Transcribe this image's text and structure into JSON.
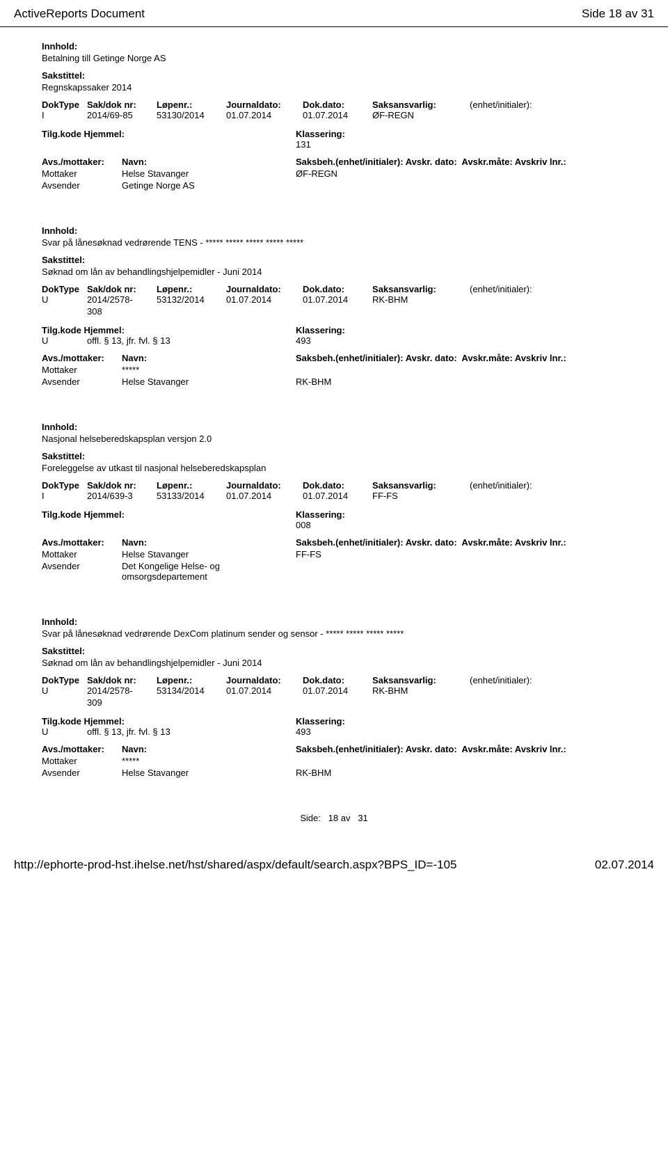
{
  "header": {
    "doc_title": "ActiveReports Document",
    "page_info": "Side 18 av 31"
  },
  "labels": {
    "innhold": "Innhold:",
    "sakstittel": "Sakstittel:",
    "doktype": "DokType",
    "sakdoknr": "Sak/dok nr:",
    "lopenr": "Løpenr.:",
    "journaldato": "Journaldato:",
    "dokdato": "Dok.dato:",
    "saksansvarlig": "Saksansvarlig:",
    "enhet": "(enhet/initialer):",
    "tilgkode": "Tilg.kode",
    "hjemmel": "Hjemmel:",
    "klassering": "Klassering:",
    "avsmottaker": "Avs./mottaker:",
    "navn": "Navn:",
    "saksbeh": "Saksbeh.(enhet/initialer):",
    "avskrdato": "Avskr. dato:",
    "avskrmate": "Avskr.måte:",
    "avskrivlnr": "Avskriv lnr.:",
    "mottaker": "Mottaker",
    "avsender": "Avsender"
  },
  "records": [
    {
      "innhold": "Betalning till Getinge Norge AS",
      "sakstittel": "Regnskapssaker 2014",
      "doktype": "I",
      "sakdoknr": "2014/69-85",
      "sakdoknr2": "",
      "lopenr": "53130/2014",
      "journaldato": "01.07.2014",
      "dokdato": "01.07.2014",
      "saksansvarlig": "ØF-REGN",
      "tilg_u": "",
      "tilg_hjemmel": "",
      "klassering": "131",
      "parties": [
        {
          "role": "Mottaker",
          "navn": "Helse Stavanger",
          "saksbeh": "ØF-REGN"
        },
        {
          "role": "Avsender",
          "navn": "Getinge Norge AS",
          "saksbeh": ""
        }
      ]
    },
    {
      "innhold": "Svar på lånesøknad vedrørende TENS - ***** ***** ***** ***** *****",
      "sakstittel": "Søknad om lån av behandlingshjelpemidler - Juni 2014",
      "doktype": "U",
      "sakdoknr": "2014/2578-",
      "sakdoknr2": "308",
      "lopenr": "53132/2014",
      "journaldato": "01.07.2014",
      "dokdato": "01.07.2014",
      "saksansvarlig": "RK-BHM",
      "tilg_u": "U",
      "tilg_hjemmel": "offl. § 13, jfr. fvl. § 13",
      "klassering": "493",
      "parties": [
        {
          "role": "Mottaker",
          "navn": "*****",
          "saksbeh": ""
        },
        {
          "role": "Avsender",
          "navn": "Helse Stavanger",
          "saksbeh": "RK-BHM"
        }
      ]
    },
    {
      "innhold": "Nasjonal helseberedskapsplan versjon 2.0",
      "sakstittel": "Foreleggelse av utkast til nasjonal helseberedskapsplan",
      "doktype": "I",
      "sakdoknr": "2014/639-3",
      "sakdoknr2": "",
      "lopenr": "53133/2014",
      "journaldato": "01.07.2014",
      "dokdato": "01.07.2014",
      "saksansvarlig": "FF-FS",
      "tilg_u": "",
      "tilg_hjemmel": "",
      "klassering": "008",
      "parties": [
        {
          "role": "Mottaker",
          "navn": "Helse Stavanger",
          "saksbeh": "FF-FS"
        },
        {
          "role": "Avsender",
          "navn": "Det Kongelige Helse- og omsorgsdepartement",
          "saksbeh": ""
        }
      ]
    },
    {
      "innhold": "Svar på lånesøknad vedrørende DexCom platinum sender og sensor - ***** ***** ***** *****",
      "sakstittel": "Søknad om lån av behandlingshjelpemidler - Juni 2014",
      "doktype": "U",
      "sakdoknr": "2014/2578-",
      "sakdoknr2": "309",
      "lopenr": "53134/2014",
      "journaldato": "01.07.2014",
      "dokdato": "01.07.2014",
      "saksansvarlig": "RK-BHM",
      "tilg_u": "U",
      "tilg_hjemmel": "offl. § 13, jfr. fvl. § 13",
      "klassering": "493",
      "parties": [
        {
          "role": "Mottaker",
          "navn": "*****",
          "saksbeh": ""
        },
        {
          "role": "Avsender",
          "navn": "Helse Stavanger",
          "saksbeh": "RK-BHM"
        }
      ]
    }
  ],
  "center_footer": {
    "side_label": "Side:",
    "side_val": "18 av",
    "side_total": "31"
  },
  "bottom": {
    "url": "http://ephorte-prod-hst.ihelse.net/hst/shared/aspx/default/search.aspx?BPS_ID=-105",
    "date": "02.07.2014"
  }
}
